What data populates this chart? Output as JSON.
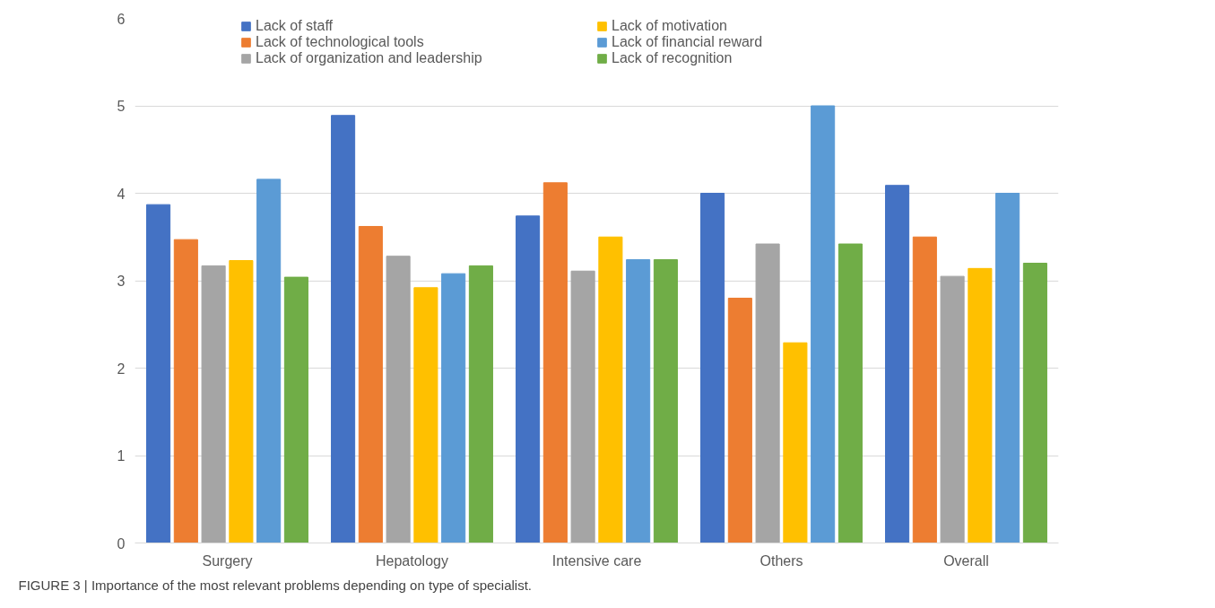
{
  "chart_data": {
    "type": "bar",
    "categories": [
      "Surgery",
      "Hepatology",
      "Intensive care",
      "Others",
      "Overall"
    ],
    "series": [
      {
        "name": "Lack of staff",
        "color": "#4472c4",
        "values": [
          3.87,
          4.89,
          3.74,
          4.0,
          4.09
        ]
      },
      {
        "name": "Lack of technological tools",
        "color": "#ed7d31",
        "values": [
          3.47,
          3.62,
          4.12,
          2.8,
          3.5
        ]
      },
      {
        "name": "Lack of organization and leadership",
        "color": "#a5a5a5",
        "values": [
          3.17,
          3.28,
          3.11,
          3.42,
          3.05
        ]
      },
      {
        "name": "Lack of motivation",
        "color": "#ffc000",
        "values": [
          3.23,
          2.92,
          3.5,
          2.29,
          3.14
        ]
      },
      {
        "name": "Lack of financial reward",
        "color": "#5b9bd5",
        "values": [
          4.16,
          3.08,
          3.24,
          5.0,
          4.0
        ]
      },
      {
        "name": "Lack of recognition",
        "color": "#70ad47",
        "values": [
          3.04,
          3.17,
          3.24,
          3.42,
          3.2
        ]
      }
    ],
    "ylim": [
      0,
      6
    ],
    "yticks": [
      0,
      1,
      2,
      3,
      4,
      5,
      6
    ],
    "grid": "y",
    "legend": "top",
    "annotations": [
      "FIGURE 3 | Importance of the most relevant problems depending on type of specialist."
    ]
  }
}
